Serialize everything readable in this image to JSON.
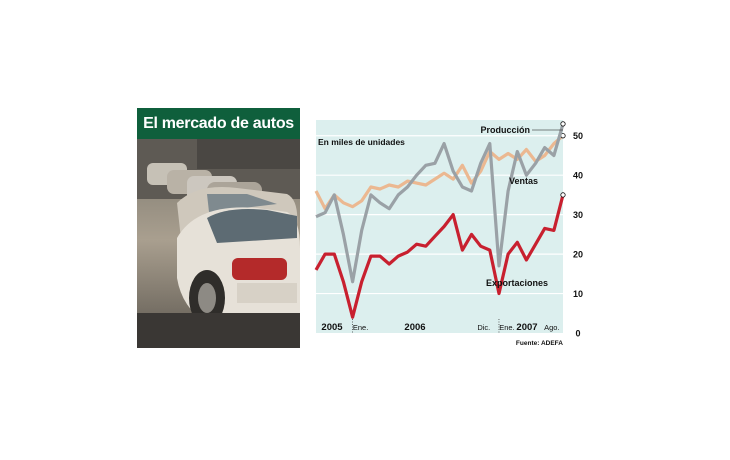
{
  "title": "El mercado de autos",
  "chart_data": {
    "type": "line",
    "subtitle": "En miles de unidades",
    "source": "Fuente: ADEFA",
    "ylim": [
      0,
      55
    ],
    "yticks": [
      "0",
      "10",
      "20",
      "30",
      "40",
      "50"
    ],
    "year_labels": [
      "2005",
      "2006",
      "2007"
    ],
    "month_labels": [
      "Ene.",
      "Dic.",
      "Ene.",
      "Ago."
    ],
    "series": [
      {
        "name": "Producción",
        "color": "#9aa1a6",
        "values": [
          29.5,
          30.5,
          35,
          25,
          13,
          26,
          35,
          33,
          31.5,
          35,
          37,
          40,
          42.5,
          43,
          48,
          41,
          37,
          36,
          43,
          48,
          17,
          36,
          46,
          40,
          43,
          47,
          45,
          53
        ]
      },
      {
        "name": "Ventas",
        "color": "#ebb891",
        "values": [
          36,
          31.5,
          35,
          33,
          32,
          33.5,
          37,
          36.5,
          37.5,
          37,
          38.5,
          38,
          37.5,
          39,
          40.5,
          39,
          42.5,
          38,
          41,
          46,
          44,
          45.5,
          44,
          46.5,
          43.5,
          45,
          48,
          50
        ]
      },
      {
        "name": "Exportaciones",
        "color": "#c8202f",
        "values": [
          16,
          20,
          20,
          13,
          4,
          13,
          19.5,
          19.5,
          17.5,
          19.5,
          20.5,
          22.5,
          22,
          24.5,
          27,
          30,
          21,
          25,
          22,
          21,
          10,
          20,
          23,
          18.5,
          22.5,
          26.5,
          26,
          35
        ]
      }
    ]
  }
}
